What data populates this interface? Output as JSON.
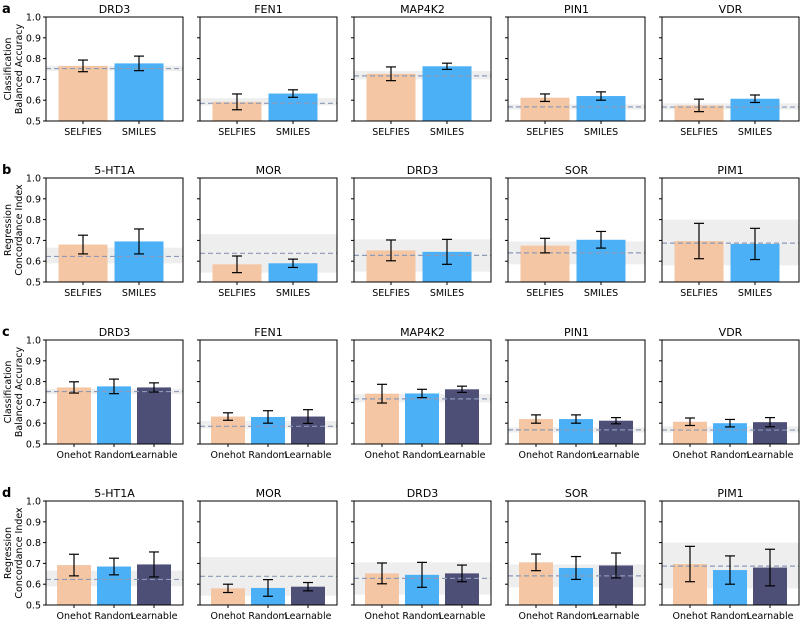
{
  "colors": {
    "selfies": "#f4c6a3",
    "smiles": "#4bb0f5",
    "onehot": "#f4c6a3",
    "random": "#4bb0f5",
    "learnable": "#4d4f77",
    "band": "#eeeeee",
    "dash": "#8c9ab8"
  },
  "chart_data": [
    {
      "type": "bar",
      "label": "a",
      "ylabel": [
        "Classification",
        "Balanced Accuracy"
      ],
      "ylim": [
        0.5,
        1.0
      ],
      "yticks": [
        "0.5",
        "0.6",
        "0.7",
        "0.8",
        "0.9",
        "1.0"
      ],
      "categories": [
        "SELFIES",
        "SMILES"
      ],
      "subplots": [
        {
          "title": "DRD3",
          "values": [
            0.765,
            0.777
          ],
          "errors": [
            0.028,
            0.035
          ],
          "baseline": 0.752,
          "band": [
            0.74,
            0.765
          ]
        },
        {
          "title": "FEN1",
          "values": [
            0.592,
            0.632
          ],
          "errors": [
            0.038,
            0.018
          ],
          "baseline": 0.585,
          "band": [
            0.575,
            0.61
          ]
        },
        {
          "title": "MAP4K2",
          "values": [
            0.727,
            0.763
          ],
          "errors": [
            0.033,
            0.015
          ],
          "baseline": 0.717,
          "band": [
            0.7,
            0.74
          ]
        },
        {
          "title": "PIN1",
          "values": [
            0.612,
            0.62
          ],
          "errors": [
            0.018,
            0.02
          ],
          "baseline": 0.568,
          "band": [
            0.555,
            0.58
          ]
        },
        {
          "title": "VDR",
          "values": [
            0.575,
            0.607
          ],
          "errors": [
            0.03,
            0.018
          ],
          "baseline": 0.567,
          "band": [
            0.555,
            0.585
          ]
        }
      ]
    },
    {
      "type": "bar",
      "label": "b",
      "ylabel": [
        "Regression",
        "Concordance Index"
      ],
      "ylim": [
        0.5,
        1.0
      ],
      "yticks": [
        "0.5",
        "0.6",
        "0.7",
        "0.8",
        "0.9",
        "1.0"
      ],
      "categories": [
        "SELFIES",
        "SMILES"
      ],
      "subplots": [
        {
          "title": "5-HT1A",
          "values": [
            0.68,
            0.695
          ],
          "errors": [
            0.045,
            0.06
          ],
          "baseline": 0.623,
          "band": [
            0.59,
            0.665
          ]
        },
        {
          "title": "MOR",
          "values": [
            0.585,
            0.59
          ],
          "errors": [
            0.04,
            0.02
          ],
          "baseline": 0.638,
          "band": [
            0.545,
            0.73
          ]
        },
        {
          "title": "DRD3",
          "values": [
            0.652,
            0.645
          ],
          "errors": [
            0.05,
            0.06
          ],
          "baseline": 0.628,
          "band": [
            0.55,
            0.705
          ]
        },
        {
          "title": "SOR",
          "values": [
            0.675,
            0.703
          ],
          "errors": [
            0.035,
            0.04
          ],
          "baseline": 0.64,
          "band": [
            0.585,
            0.695
          ]
        },
        {
          "title": "PIM1",
          "values": [
            0.697,
            0.683
          ],
          "errors": [
            0.085,
            0.075
          ],
          "baseline": 0.687,
          "band": [
            0.58,
            0.8
          ]
        }
      ]
    },
    {
      "type": "bar",
      "label": "c",
      "ylabel": [
        "Classification",
        "Balanced Accuracy"
      ],
      "ylim": [
        0.5,
        1.0
      ],
      "yticks": [
        "0.5",
        "0.6",
        "0.7",
        "0.8",
        "0.9",
        "1.0"
      ],
      "categories": [
        "Onehot",
        "Random",
        "Learnable"
      ],
      "subplots": [
        {
          "title": "DRD3",
          "values": [
            0.772,
            0.777,
            0.772
          ],
          "errors": [
            0.027,
            0.035,
            0.022
          ],
          "baseline": 0.752,
          "band": [
            0.74,
            0.765
          ]
        },
        {
          "title": "FEN1",
          "values": [
            0.632,
            0.63,
            0.632
          ],
          "errors": [
            0.018,
            0.03,
            0.033
          ],
          "baseline": 0.585,
          "band": [
            0.575,
            0.61
          ]
        },
        {
          "title": "MAP4K2",
          "values": [
            0.742,
            0.743,
            0.763
          ],
          "errors": [
            0.045,
            0.02,
            0.015
          ],
          "baseline": 0.717,
          "band": [
            0.7,
            0.74
          ]
        },
        {
          "title": "PIN1",
          "values": [
            0.62,
            0.62,
            0.612
          ],
          "errors": [
            0.02,
            0.02,
            0.015
          ],
          "baseline": 0.568,
          "band": [
            0.555,
            0.58
          ]
        },
        {
          "title": "VDR",
          "values": [
            0.607,
            0.6,
            0.605
          ],
          "errors": [
            0.018,
            0.018,
            0.022
          ],
          "baseline": 0.567,
          "band": [
            0.555,
            0.585
          ]
        }
      ]
    },
    {
      "type": "bar",
      "label": "d",
      "ylabel": [
        "Regression",
        "Concordance Index"
      ],
      "ylim": [
        0.5,
        1.0
      ],
      "yticks": [
        "0.5",
        "0.6",
        "0.7",
        "0.8",
        "0.9",
        "1.0"
      ],
      "categories": [
        "Onehot",
        "Random",
        "Learnable"
      ],
      "subplots": [
        {
          "title": "5-HT1A",
          "values": [
            0.692,
            0.685,
            0.695
          ],
          "errors": [
            0.052,
            0.04,
            0.06
          ],
          "baseline": 0.623,
          "band": [
            0.59,
            0.665
          ]
        },
        {
          "title": "MOR",
          "values": [
            0.58,
            0.582,
            0.588
          ],
          "errors": [
            0.02,
            0.04,
            0.02
          ],
          "baseline": 0.638,
          "band": [
            0.545,
            0.73
          ]
        },
        {
          "title": "DRD3",
          "values": [
            0.652,
            0.645,
            0.652
          ],
          "errors": [
            0.05,
            0.06,
            0.04
          ],
          "baseline": 0.628,
          "band": [
            0.55,
            0.705
          ]
        },
        {
          "title": "SOR",
          "values": [
            0.705,
            0.678,
            0.69
          ],
          "errors": [
            0.04,
            0.055,
            0.06
          ],
          "baseline": 0.64,
          "band": [
            0.585,
            0.695
          ]
        },
        {
          "title": "PIM1",
          "values": [
            0.697,
            0.668,
            0.68
          ],
          "errors": [
            0.085,
            0.068,
            0.088
          ],
          "baseline": 0.687,
          "band": [
            0.58,
            0.8
          ]
        }
      ]
    }
  ]
}
